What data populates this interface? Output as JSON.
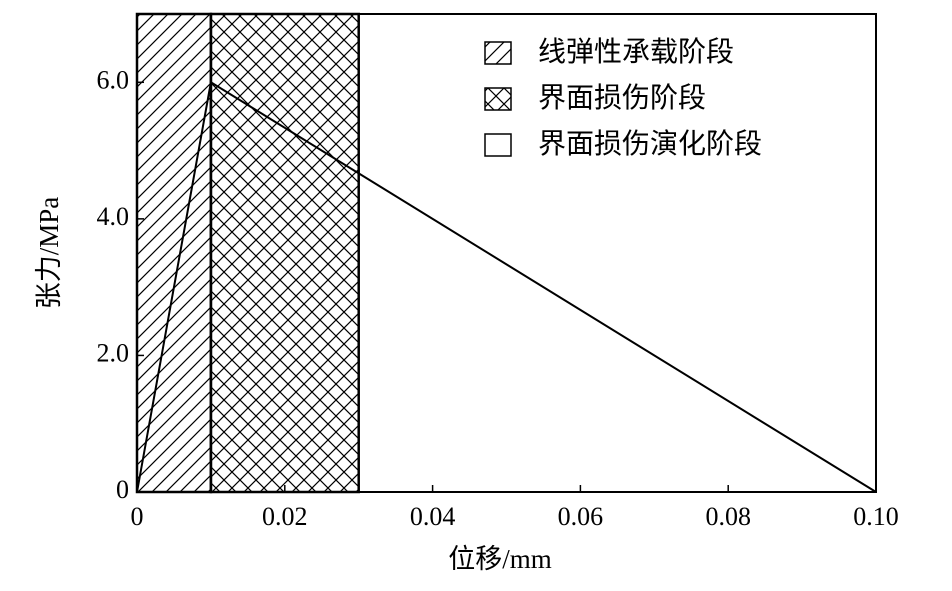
{
  "chart_data": {
    "type": "line",
    "x_label": "位移/mm",
    "y_label": "张力/MPa",
    "x": [
      0,
      0.01,
      0.1
    ],
    "series": [
      {
        "color": "#000000",
        "values": [
          0,
          6.0,
          0
        ]
      }
    ],
    "regions": [
      {
        "name": "线弹性承载阶段",
        "start": 0,
        "end": 0.01,
        "pattern": "hatch"
      },
      {
        "name": "界面损伤阶段",
        "start": 0.01,
        "end": 0.03,
        "pattern": "crosshatch"
      },
      {
        "name": "界面损伤演化阶段",
        "start": 0.03,
        "end": 0.1,
        "pattern": "none"
      }
    ],
    "xlim": [
      0,
      0.1
    ],
    "ylim": [
      0,
      7
    ],
    "xticks": [
      0,
      0.02,
      0.04,
      0.06,
      0.08,
      {
        "value": 0.1,
        "label": "0.10"
      }
    ],
    "yticks": [
      0,
      {
        "value": 2,
        "label": "2.0"
      },
      {
        "value": 4,
        "label": "4.0"
      },
      {
        "value": 6,
        "label": "6.0"
      }
    ],
    "legend": "upper right",
    "grid": false
  }
}
